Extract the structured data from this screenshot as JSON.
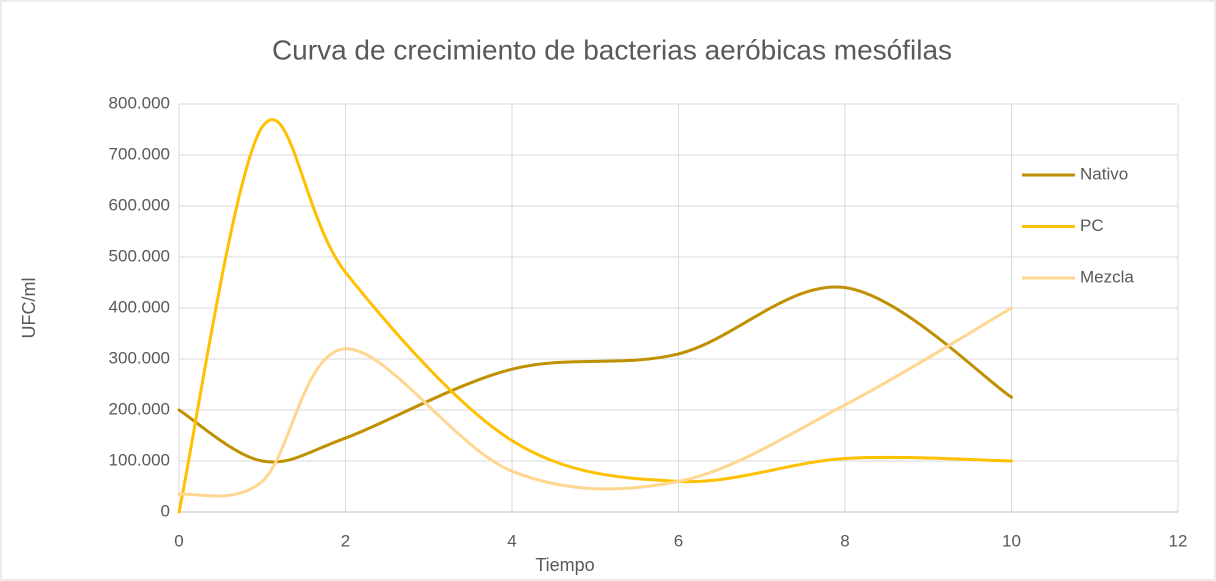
{
  "chart_data": {
    "type": "line",
    "smooth": true,
    "title": "Curva de crecimiento de bacterias aeróbicas mesófilas",
    "xlabel": "Tiempo",
    "ylabel": "UFC/ml",
    "x": [
      0,
      1,
      2,
      4,
      6,
      8,
      10
    ],
    "series": [
      {
        "name": "Nativo",
        "color": "#bf9000",
        "values": [
          200000,
          100000,
          145000,
          280000,
          310000,
          440000,
          225000
        ]
      },
      {
        "name": "PC",
        "color": "#ffc000",
        "values": [
          0,
          755000,
          470000,
          140000,
          60000,
          105000,
          100000
        ]
      },
      {
        "name": "Mezcla",
        "color": "#ffd68f",
        "values": [
          35000,
          60000,
          320000,
          80000,
          60000,
          210000,
          400000
        ]
      }
    ],
    "xlim": [
      0,
      12
    ],
    "xticks": [
      0,
      2,
      4,
      6,
      8,
      10,
      12
    ],
    "ylim": [
      0,
      800000
    ],
    "yticks": [
      0,
      {
        "value": 100000,
        "label": "100.000"
      },
      {
        "value": 200000,
        "label": "200.000"
      },
      {
        "value": 300000,
        "label": "300.000"
      },
      {
        "value": 400000,
        "label": "400.000"
      },
      {
        "value": 500000,
        "label": "500.000"
      },
      {
        "value": 600000,
        "label": "600.000"
      },
      {
        "value": 700000,
        "label": "700.000"
      },
      {
        "value": 800000,
        "label": "800.000"
      }
    ],
    "grid": true,
    "legend": "right"
  }
}
